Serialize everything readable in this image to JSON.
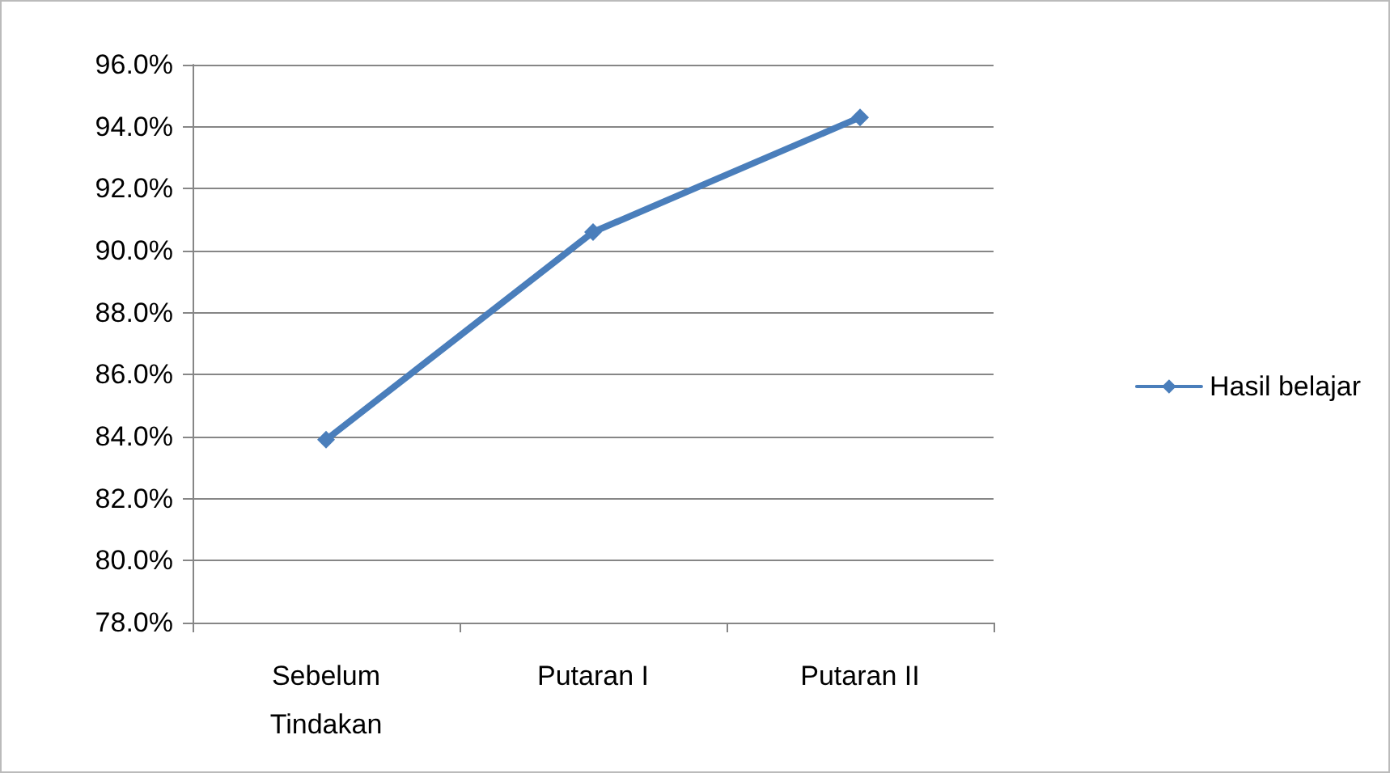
{
  "chart_data": {
    "type": "line",
    "categories": [
      "Sebelum\nTindakan",
      "Putaran I",
      "Putaran II"
    ],
    "series": [
      {
        "name": "Hasil belajar",
        "color": "#4a7ebb",
        "values": [
          83.9,
          90.6,
          94.3
        ]
      }
    ],
    "ylim": [
      78,
      96
    ],
    "yticks": [
      {
        "value": 78,
        "label": "78.0%"
      },
      {
        "value": 80,
        "label": "80.0%"
      },
      {
        "value": 82,
        "label": "82.0%"
      },
      {
        "value": 84,
        "label": "84.0%"
      },
      {
        "value": 86,
        "label": "86.0%"
      },
      {
        "value": 88,
        "label": "88.0%"
      },
      {
        "value": 90,
        "label": "90.0%"
      },
      {
        "value": 92,
        "label": "92.0%"
      },
      {
        "value": 94,
        "label": "94.0%"
      },
      {
        "value": 96,
        "label": "96.0%"
      }
    ],
    "grid": "y",
    "legend": "right",
    "marker": "diamond",
    "line_style": "solid"
  }
}
